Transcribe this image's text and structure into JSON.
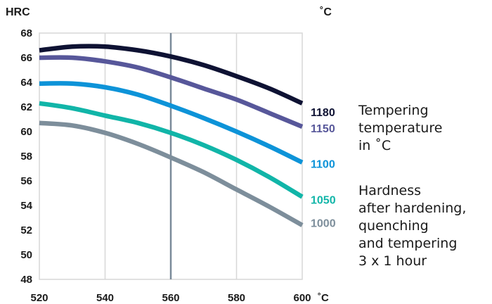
{
  "y_unit": "HRC",
  "top_temp_unit": "˚C",
  "annotations": {
    "tempering": "Tempering\ntemperature\nin ˚C",
    "hardness": "Hardness\nafter hardening,\nquenching\nand tempering\n3 x 1 hour"
  },
  "colors": {
    "grid": "#d7d7d7",
    "marker_line": "#7a8a99",
    "axis_text": "#1a1a1a"
  },
  "chart_data": {
    "type": "line",
    "x_unit": "˚C",
    "xlim": [
      520,
      600
    ],
    "ylim": [
      48,
      68
    ],
    "x_ticks": [
      520,
      540,
      560,
      580,
      600
    ],
    "x_tick_labels": [
      "520",
      "540",
      "560",
      "580",
      "600"
    ],
    "y_ticks": [
      48,
      50,
      52,
      54,
      56,
      58,
      60,
      62,
      64,
      66,
      68
    ],
    "y_tick_labels": [
      "48",
      "50",
      "52",
      "54",
      "56",
      "58",
      "60",
      "62",
      "64",
      "66",
      "68"
    ],
    "x_gridlines": [
      540,
      580
    ],
    "marker_x": 560,
    "series": [
      {
        "name": "1180",
        "color": "#0e1233",
        "points": [
          [
            520,
            66.6
          ],
          [
            530,
            66.9
          ],
          [
            540,
            66.9
          ],
          [
            550,
            66.6
          ],
          [
            560,
            66.1
          ],
          [
            570,
            65.4
          ],
          [
            580,
            64.5
          ],
          [
            590,
            63.5
          ],
          [
            600,
            62.3
          ]
        ]
      },
      {
        "name": "1150",
        "color": "#57579a",
        "points": [
          [
            520,
            66.0
          ],
          [
            530,
            66.0
          ],
          [
            540,
            65.7
          ],
          [
            550,
            65.2
          ],
          [
            560,
            64.4
          ],
          [
            570,
            63.5
          ],
          [
            580,
            62.6
          ],
          [
            590,
            61.5
          ],
          [
            600,
            60.4
          ]
        ]
      },
      {
        "name": "1100",
        "color": "#0d93d8",
        "points": [
          [
            520,
            63.9
          ],
          [
            530,
            63.9
          ],
          [
            540,
            63.6
          ],
          [
            550,
            63.0
          ],
          [
            560,
            62.1
          ],
          [
            570,
            61.1
          ],
          [
            580,
            60.0
          ],
          [
            590,
            58.8
          ],
          [
            600,
            57.5
          ]
        ]
      },
      {
        "name": "1050",
        "color": "#11b5a8",
        "points": [
          [
            520,
            62.3
          ],
          [
            530,
            61.9
          ],
          [
            540,
            61.3
          ],
          [
            550,
            60.7
          ],
          [
            560,
            59.9
          ],
          [
            570,
            58.9
          ],
          [
            580,
            57.7
          ],
          [
            590,
            56.3
          ],
          [
            600,
            54.7
          ]
        ]
      },
      {
        "name": "1000",
        "color": "#7d8e9b",
        "points": [
          [
            520,
            60.7
          ],
          [
            530,
            60.5
          ],
          [
            540,
            59.9
          ],
          [
            550,
            59.0
          ],
          [
            560,
            57.9
          ],
          [
            570,
            56.7
          ],
          [
            580,
            55.3
          ],
          [
            590,
            53.9
          ],
          [
            600,
            52.4
          ]
        ]
      }
    ],
    "end_labels": [
      {
        "series": "1180",
        "y_at": 61.6
      },
      {
        "series": "1150",
        "y_at": 60.3
      },
      {
        "series": "1100",
        "y_at": 57.4
      },
      {
        "series": "1050",
        "y_at": 54.5
      },
      {
        "series": "1000",
        "y_at": 52.6
      }
    ]
  }
}
